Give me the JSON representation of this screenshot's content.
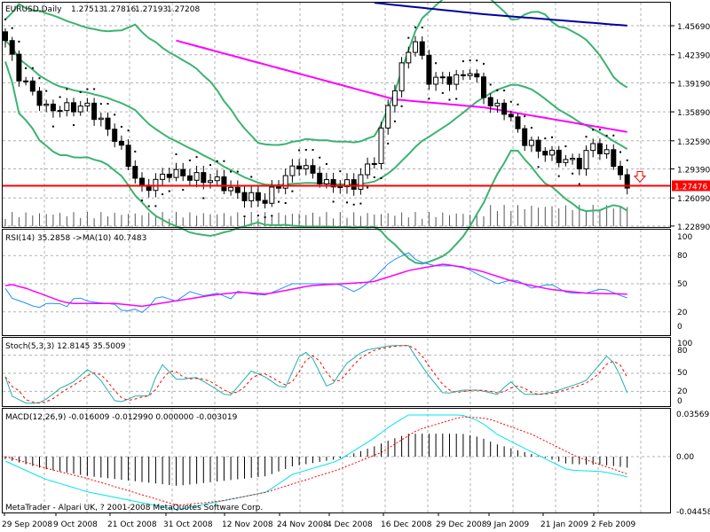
{
  "main": {
    "symbol_label": "EURUSD,Daily",
    "ohlc": [
      "1.27513",
      "1.27816",
      "1.27193",
      "1.27208"
    ],
    "price_ticks": [
      "1.45690",
      "1.42390",
      "1.39190",
      "1.35890",
      "1.32590",
      "1.29390",
      "1.26090",
      "1.22890"
    ],
    "price_tick_values": [
      1.4569,
      1.4239,
      1.3919,
      1.3589,
      1.3259,
      1.2939,
      1.2609,
      1.2289
    ],
    "current_price_label": "1.27476",
    "current_price": 1.27476,
    "colors": {
      "bollinger": "#3cb371",
      "ma_fast": "#ff00ff",
      "ma_slow": "#0000a0",
      "price_line": "#ff0000",
      "sar": "#000000"
    }
  },
  "rsi": {
    "label": "RSI(14) 35.2858  ->MA(10) 40.7483",
    "ticks": [
      "100",
      "80",
      "50",
      "20",
      "0"
    ]
  },
  "stoch": {
    "label": "Stoch(5,3,3) 12.8145 35.5009",
    "ticks": [
      "100",
      "80",
      "50",
      "20",
      "0"
    ]
  },
  "macd": {
    "label": "MACD(12,26,9) -0.016009 -0.012990 0.000000 -0.003019",
    "ticks": [
      "0.035695",
      "0.00",
      "-0.04458"
    ]
  },
  "copyright": "MetaTrader - Alpari UK, ? 2001-2008 MetaQuotes Software Corp.",
  "date_labels": [
    "29 Sep 2008",
    "9 Oct 2008",
    "21 Oct 2008",
    "31 Oct 2008",
    "12 Nov 2008",
    "24 Nov 2008",
    "4 Dec 2008",
    "16 Dec 2008",
    "29 Dec 2008",
    "9 Jan 2009",
    "21 Jan 2009",
    "2 Feb 2009"
  ],
  "chart_data": {
    "type": "line",
    "bars": 92,
    "close_keypoints": [
      [
        0,
        1.44
      ],
      [
        2,
        1.4
      ],
      [
        6,
        1.362
      ],
      [
        12,
        1.365
      ],
      [
        16,
        1.33
      ],
      [
        20,
        1.27
      ],
      [
        24,
        1.29
      ],
      [
        27,
        1.285
      ],
      [
        31,
        1.28
      ],
      [
        34,
        1.265
      ],
      [
        38,
        1.258
      ],
      [
        41,
        1.286
      ],
      [
        43,
        1.3
      ],
      [
        47,
        1.276
      ],
      [
        51,
        1.276
      ],
      [
        54,
        1.306
      ],
      [
        56,
        1.366
      ],
      [
        59,
        1.43
      ],
      [
        60,
        1.44
      ],
      [
        62,
        1.396
      ],
      [
        66,
        1.396
      ],
      [
        68,
        1.406
      ],
      [
        71,
        1.366
      ],
      [
        73,
        1.362
      ],
      [
        76,
        1.326
      ],
      [
        78,
        1.316
      ],
      [
        81,
        1.306
      ],
      [
        84,
        1.3
      ],
      [
        86,
        1.322
      ],
      [
        88,
        1.31
      ],
      [
        91,
        1.279
      ]
    ],
    "ma_fast_keypoints": [
      [
        25,
        1.44
      ],
      [
        57,
        1.373
      ],
      [
        70,
        1.364
      ],
      [
        91,
        1.336
      ]
    ],
    "ma_slow_keypoints": [
      [
        54,
        1.483
      ],
      [
        70,
        1.47
      ],
      [
        91,
        1.457
      ]
    ],
    "rsi_keypoints": [
      [
        0,
        45
      ],
      [
        0.5,
        36
      ],
      [
        3.5,
        28
      ],
      [
        4.8,
        24
      ],
      [
        6,
        29
      ],
      [
        7.9,
        29
      ],
      [
        9.2,
        25
      ],
      [
        9.9,
        34
      ],
      [
        10.9,
        35
      ],
      [
        12.2,
        31
      ],
      [
        16.1,
        28
      ],
      [
        17.4,
        19
      ],
      [
        18.7,
        24
      ],
      [
        20.4,
        18
      ],
      [
        21.6,
        33
      ],
      [
        22.6,
        37
      ],
      [
        25.2,
        31
      ],
      [
        26.8,
        42
      ],
      [
        29.1,
        37
      ],
      [
        31,
        40
      ],
      [
        33,
        34
      ],
      [
        34,
        42
      ],
      [
        36.2,
        39
      ],
      [
        38.2,
        38
      ],
      [
        42,
        50
      ],
      [
        48.6,
        50
      ],
      [
        51.2,
        41
      ],
      [
        53.8,
        55
      ],
      [
        56.4,
        74
      ],
      [
        59,
        83
      ],
      [
        60.3,
        74
      ],
      [
        62.9,
        69
      ],
      [
        66.8,
        69
      ],
      [
        69.4,
        59
      ],
      [
        72,
        50
      ],
      [
        74.5,
        55
      ],
      [
        77.1,
        45
      ],
      [
        79.7,
        50
      ],
      [
        82.3,
        40
      ],
      [
        84.9,
        40
      ],
      [
        87.5,
        45
      ],
      [
        90.8,
        35
      ]
    ],
    "rsi_ma_keypoints": [
      [
        0,
        48
      ],
      [
        0.5,
        50
      ],
      [
        3.1,
        45
      ],
      [
        8.3,
        31
      ],
      [
        9.6,
        29
      ],
      [
        16.1,
        29
      ],
      [
        20,
        26
      ],
      [
        25.2,
        32
      ],
      [
        30.4,
        38
      ],
      [
        34.3,
        41
      ],
      [
        38.2,
        39
      ],
      [
        44.7,
        48
      ],
      [
        53.8,
        52
      ],
      [
        59,
        64
      ],
      [
        64.2,
        71
      ],
      [
        69.4,
        64
      ],
      [
        74.5,
        52
      ],
      [
        79.7,
        44
      ],
      [
        84.9,
        40
      ],
      [
        90.8,
        39
      ]
    ],
    "stoch_keypoints": [
      [
        0,
        44
      ],
      [
        0.5,
        15
      ],
      [
        3.1,
        0
      ],
      [
        4.8,
        0
      ],
      [
        6.4,
        10
      ],
      [
        8.3,
        28
      ],
      [
        9.6,
        32
      ],
      [
        12,
        56
      ],
      [
        13.5,
        46
      ],
      [
        16.1,
        3
      ],
      [
        17.4,
        3
      ],
      [
        18.7,
        12
      ],
      [
        21.3,
        13
      ],
      [
        22.6,
        69
      ],
      [
        25.2,
        38
      ],
      [
        27.8,
        44
      ],
      [
        29.7,
        32
      ],
      [
        32.7,
        10
      ],
      [
        36,
        54
      ],
      [
        38.2,
        43
      ],
      [
        40.8,
        22
      ],
      [
        43.4,
        88
      ],
      [
        44.7,
        81
      ],
      [
        47.3,
        22
      ],
      [
        49.9,
        66
      ],
      [
        52.5,
        88
      ],
      [
        56.4,
        96
      ],
      [
        59,
        96
      ],
      [
        61.6,
        51
      ],
      [
        64.2,
        15
      ],
      [
        66.8,
        22
      ],
      [
        69.4,
        22
      ],
      [
        72,
        15
      ],
      [
        73.9,
        37
      ],
      [
        75.8,
        15
      ],
      [
        78.4,
        15
      ],
      [
        81,
        22
      ],
      [
        84.9,
        37
      ],
      [
        88.2,
        81
      ],
      [
        89.5,
        59
      ],
      [
        91.2,
        12
      ]
    ],
    "macd_keypoints": [
      [
        0,
        -0.0037
      ],
      [
        5.7,
        -0.0186
      ],
      [
        12.2,
        -0.0298
      ],
      [
        18.7,
        -0.0372
      ],
      [
        25.2,
        -0.0446
      ],
      [
        31.7,
        -0.0372
      ],
      [
        38.2,
        -0.0298
      ],
      [
        42,
        -0.0149
      ],
      [
        48.6,
        -0.0037
      ],
      [
        53.8,
        0.0149
      ],
      [
        56.4,
        0.026
      ],
      [
        59,
        0.035
      ],
      [
        62.9,
        0.035
      ],
      [
        66.8,
        0.035
      ],
      [
        69.4,
        0.0298
      ],
      [
        72,
        0.0186
      ],
      [
        77.1,
        0.0037
      ],
      [
        82.3,
        -0.0112
      ],
      [
        87.5,
        -0.0126
      ],
      [
        91.2,
        -0.0171
      ]
    ],
    "macd_signal_keypoints": [
      [
        0,
        0
      ],
      [
        7,
        -0.0112
      ],
      [
        12.2,
        -0.0186
      ],
      [
        18.7,
        -0.0298
      ],
      [
        25.2,
        -0.0409
      ],
      [
        31.7,
        -0.0372
      ],
      [
        38.2,
        -0.0298
      ],
      [
        48.6,
        -0.0112
      ],
      [
        55.1,
        0.0037
      ],
      [
        60.3,
        0.0223
      ],
      [
        66.8,
        0.0335
      ],
      [
        70.6,
        0.032
      ],
      [
        77.1,
        0.0186
      ],
      [
        83.6,
        0
      ],
      [
        91.2,
        -0.0149
      ]
    ]
  }
}
